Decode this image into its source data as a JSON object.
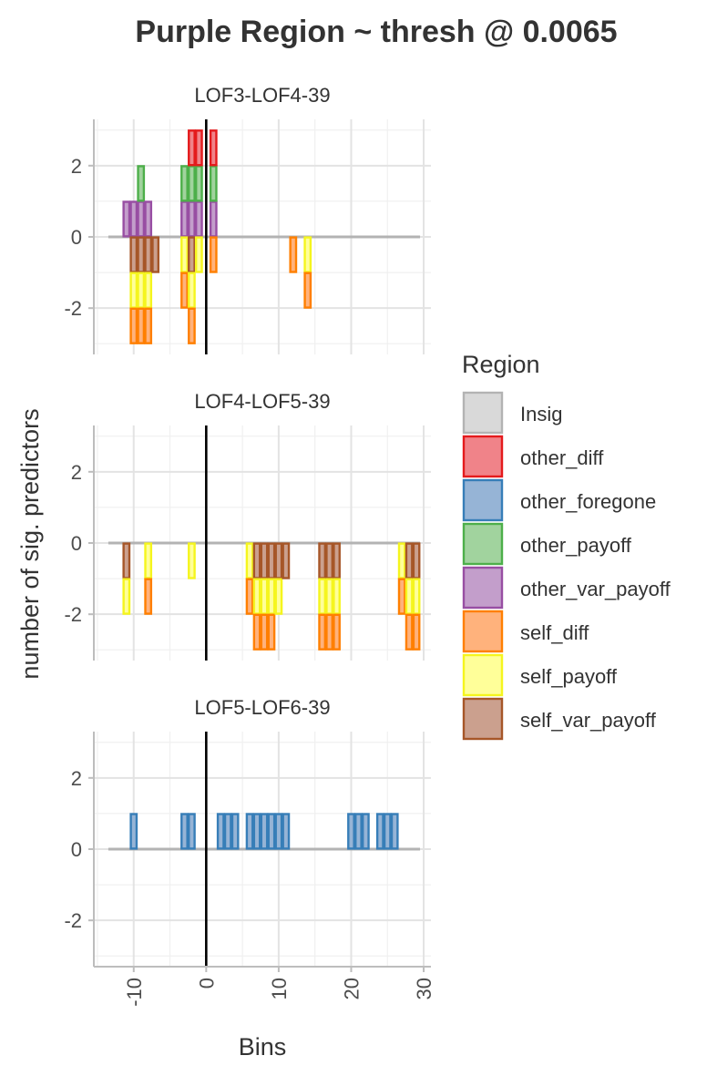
{
  "chart_data": {
    "type": "bar",
    "title": "Purple Region ~ thresh @ 0.0065",
    "xlabel": "Bins",
    "ylabel": "number of sig. predictors",
    "xlim": [
      -15.5,
      31
    ],
    "ylim": [
      -3.3,
      3.3
    ],
    "x_ticks": [
      -10,
      0,
      10,
      20,
      30
    ],
    "y_ticks": [
      -2,
      0,
      2
    ],
    "grid": true,
    "vline_x": 0,
    "legend": {
      "title": "Region",
      "position": "right",
      "items": [
        {
          "name": "Insig",
          "fill": "#d9d9d9",
          "stroke": "#b3b3b3"
        },
        {
          "name": "other_diff",
          "fill": "#f08389",
          "stroke": "#e41a1c"
        },
        {
          "name": "other_foregone",
          "fill": "#96b4d6",
          "stroke": "#377eb8"
        },
        {
          "name": "other_payoff",
          "fill": "#a1d39e",
          "stroke": "#4daf4a"
        },
        {
          "name": "other_var_payoff",
          "fill": "#c39ecb",
          "stroke": "#984ea3"
        },
        {
          "name": "self_diff",
          "fill": "#ffb27c",
          "stroke": "#ff7f00"
        },
        {
          "name": "self_payoff",
          "fill": "#ffff99",
          "stroke": "#f5f51e"
        },
        {
          "name": "self_var_payoff",
          "fill": "#cba08e",
          "stroke": "#a65628"
        }
      ]
    },
    "panels": [
      {
        "label": "LOF3-LOF4-39",
        "positive": [
          {
            "bin": -11,
            "stack": [
              "other_var_payoff"
            ]
          },
          {
            "bin": -10,
            "stack": [
              "other_var_payoff"
            ]
          },
          {
            "bin": -9,
            "stack": [
              "other_var_payoff",
              "other_payoff"
            ]
          },
          {
            "bin": -8,
            "stack": [
              "other_var_payoff"
            ]
          },
          {
            "bin": -3,
            "stack": [
              "other_var_payoff",
              "other_payoff"
            ]
          },
          {
            "bin": -2,
            "stack": [
              "other_var_payoff",
              "other_payoff",
              "other_diff"
            ]
          },
          {
            "bin": -1,
            "stack": [
              "other_var_payoff",
              "other_payoff",
              "other_diff"
            ]
          },
          {
            "bin": 1,
            "stack": [
              "other_var_payoff",
              "other_payoff",
              "other_diff"
            ]
          }
        ],
        "negative": [
          {
            "bin": -10,
            "stack": [
              "self_var_payoff",
              "self_payoff",
              "self_diff"
            ]
          },
          {
            "bin": -9,
            "stack": [
              "self_var_payoff",
              "self_payoff",
              "self_diff"
            ]
          },
          {
            "bin": -8,
            "stack": [
              "self_var_payoff",
              "self_payoff",
              "self_diff"
            ]
          },
          {
            "bin": -7,
            "stack": [
              "self_var_payoff"
            ]
          },
          {
            "bin": -3,
            "stack": [
              "self_payoff",
              "self_diff"
            ]
          },
          {
            "bin": -2,
            "stack": [
              "self_var_payoff",
              "self_payoff",
              "self_diff"
            ]
          },
          {
            "bin": -1,
            "stack": [
              "self_payoff"
            ]
          },
          {
            "bin": 1,
            "stack": [
              "self_diff"
            ]
          },
          {
            "bin": 12,
            "stack": [
              "self_diff"
            ]
          },
          {
            "bin": 14,
            "stack": [
              "self_payoff",
              "self_diff"
            ]
          }
        ]
      },
      {
        "label": "LOF4-LOF5-39",
        "positive": [],
        "negative": [
          {
            "bin": -11,
            "stack": [
              "self_var_payoff",
              "self_payoff"
            ]
          },
          {
            "bin": -8,
            "stack": [
              "self_payoff",
              "self_diff"
            ]
          },
          {
            "bin": -2,
            "stack": [
              "self_payoff"
            ]
          },
          {
            "bin": 6,
            "stack": [
              "self_payoff",
              "self_diff"
            ]
          },
          {
            "bin": 7,
            "stack": [
              "self_var_payoff",
              "self_payoff",
              "self_diff"
            ]
          },
          {
            "bin": 8,
            "stack": [
              "self_var_payoff",
              "self_payoff",
              "self_diff"
            ]
          },
          {
            "bin": 9,
            "stack": [
              "self_var_payoff",
              "self_payoff",
              "self_diff"
            ]
          },
          {
            "bin": 10,
            "stack": [
              "self_var_payoff",
              "self_payoff"
            ]
          },
          {
            "bin": 11,
            "stack": [
              "self_var_payoff"
            ]
          },
          {
            "bin": 16,
            "stack": [
              "self_var_payoff",
              "self_payoff",
              "self_diff"
            ]
          },
          {
            "bin": 17,
            "stack": [
              "self_var_payoff",
              "self_payoff",
              "self_diff"
            ]
          },
          {
            "bin": 18,
            "stack": [
              "self_var_payoff",
              "self_payoff",
              "self_diff"
            ]
          },
          {
            "bin": 27,
            "stack": [
              "self_payoff",
              "self_diff"
            ]
          },
          {
            "bin": 28,
            "stack": [
              "self_var_payoff",
              "self_payoff",
              "self_diff"
            ]
          },
          {
            "bin": 29,
            "stack": [
              "self_var_payoff",
              "self_payoff",
              "self_diff"
            ]
          }
        ]
      },
      {
        "label": "LOF5-LOF6-39",
        "positive": [
          {
            "bin": -10,
            "stack": [
              "other_foregone"
            ]
          },
          {
            "bin": -3,
            "stack": [
              "other_foregone"
            ]
          },
          {
            "bin": -2,
            "stack": [
              "other_foregone"
            ]
          },
          {
            "bin": 2,
            "stack": [
              "other_foregone"
            ]
          },
          {
            "bin": 3,
            "stack": [
              "other_foregone"
            ]
          },
          {
            "bin": 4,
            "stack": [
              "other_foregone"
            ]
          },
          {
            "bin": 6,
            "stack": [
              "other_foregone"
            ]
          },
          {
            "bin": 7,
            "stack": [
              "other_foregone"
            ]
          },
          {
            "bin": 8,
            "stack": [
              "other_foregone"
            ]
          },
          {
            "bin": 9,
            "stack": [
              "other_foregone"
            ]
          },
          {
            "bin": 10,
            "stack": [
              "other_foregone"
            ]
          },
          {
            "bin": 11,
            "stack": [
              "other_foregone"
            ]
          },
          {
            "bin": 20,
            "stack": [
              "other_foregone"
            ]
          },
          {
            "bin": 21,
            "stack": [
              "other_foregone"
            ]
          },
          {
            "bin": 22,
            "stack": [
              "other_foregone"
            ]
          },
          {
            "bin": 24,
            "stack": [
              "other_foregone"
            ]
          },
          {
            "bin": 25,
            "stack": [
              "other_foregone"
            ]
          },
          {
            "bin": 26,
            "stack": [
              "other_foregone"
            ]
          }
        ],
        "negative": []
      }
    ]
  }
}
